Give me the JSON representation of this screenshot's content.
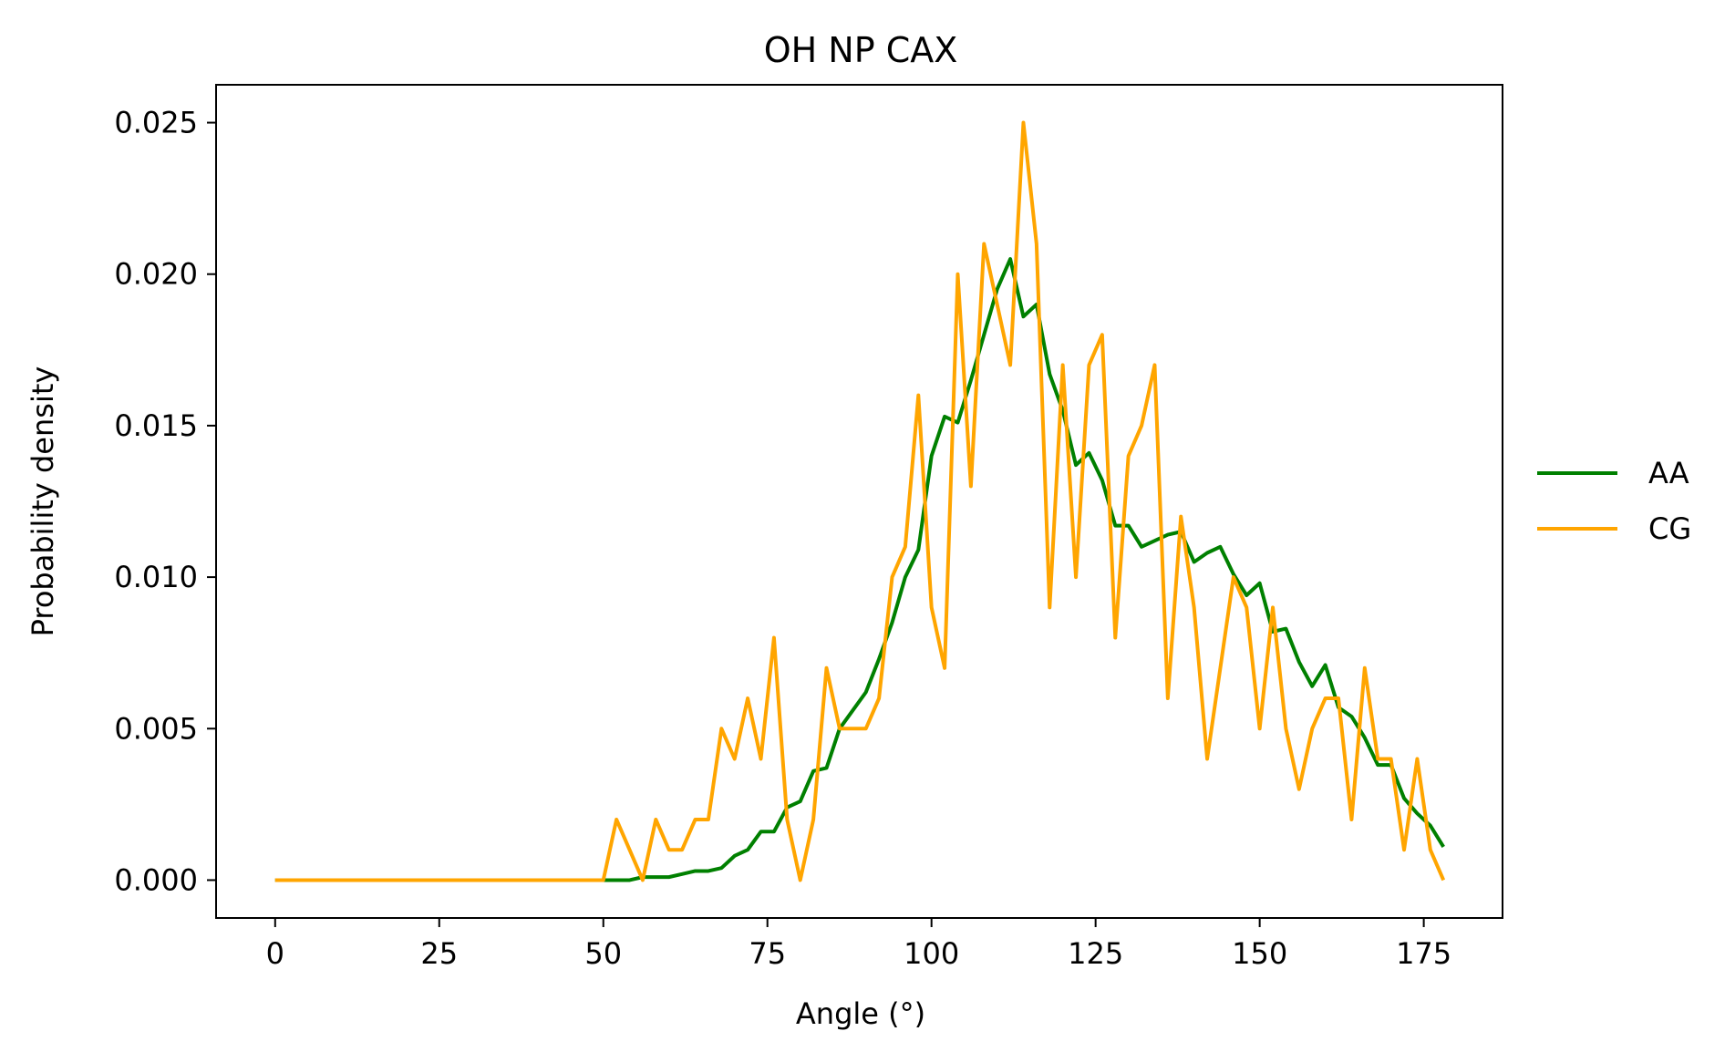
{
  "chart_data": {
    "type": "line",
    "title": "OH NP CAX",
    "xlabel": "Angle (°)",
    "ylabel": "Probability density",
    "xlim": [
      -9,
      187
    ],
    "ylim": [
      -0.00125,
      0.02625
    ],
    "xticks": [
      0,
      25,
      50,
      75,
      100,
      125,
      150,
      175
    ],
    "xtick_labels": [
      "0",
      "25",
      "50",
      "75",
      "100",
      "125",
      "150",
      "175"
    ],
    "yticks": [
      0.0,
      0.005,
      0.01,
      0.015,
      0.02,
      0.025
    ],
    "ytick_labels": [
      "0.000",
      "0.005",
      "0.010",
      "0.015",
      "0.020",
      "0.025"
    ],
    "grid": false,
    "legend_position": "center-right, outside plot",
    "x": [
      0,
      2,
      4,
      6,
      8,
      10,
      12,
      14,
      16,
      18,
      20,
      22,
      24,
      26,
      28,
      30,
      32,
      34,
      36,
      38,
      40,
      42,
      44,
      46,
      48,
      50,
      52,
      54,
      56,
      58,
      60,
      62,
      64,
      66,
      68,
      70,
      72,
      74,
      76,
      78,
      80,
      82,
      84,
      86,
      88,
      90,
      92,
      94,
      96,
      98,
      100,
      102,
      104,
      106,
      108,
      110,
      112,
      114,
      116,
      118,
      120,
      122,
      124,
      126,
      128,
      130,
      132,
      134,
      136,
      138,
      140,
      142,
      144,
      146,
      148,
      150,
      152,
      154,
      156,
      158,
      160,
      162,
      164,
      166,
      168,
      170,
      172,
      174,
      176,
      178
    ],
    "series": [
      {
        "name": "AA",
        "color": "#008000",
        "values": [
          0,
          0,
          0,
          0,
          0,
          0,
          0,
          0,
          0,
          0,
          0,
          0,
          0,
          0,
          0,
          0,
          0,
          0,
          0,
          0,
          0,
          0,
          0,
          0,
          0,
          0,
          0,
          0,
          0.0001,
          0.0001,
          0.0001,
          0.0002,
          0.0003,
          0.0003,
          0.0004,
          0.0008,
          0.001,
          0.0016,
          0.0016,
          0.0024,
          0.0026,
          0.0036,
          0.0037,
          0.005,
          0.0056,
          0.0062,
          0.0073,
          0.0085,
          0.01,
          0.0109,
          0.014,
          0.0153,
          0.0151,
          0.0165,
          0.018,
          0.0195,
          0.0205,
          0.0186,
          0.019,
          0.0167,
          0.0155,
          0.0137,
          0.0141,
          0.0132,
          0.0117,
          0.0117,
          0.011,
          0.0112,
          0.0114,
          0.0115,
          0.0105,
          0.0108,
          0.011,
          0.0101,
          0.0094,
          0.0098,
          0.0082,
          0.0083,
          0.0072,
          0.0064,
          0.0071,
          0.0057,
          0.0054,
          0.0047,
          0.0038,
          0.0038,
          0.0027,
          0.0022,
          0.0018,
          0.0011
        ]
      },
      {
        "name": "CG",
        "color": "#ffa500",
        "values": [
          0,
          0,
          0,
          0,
          0,
          0,
          0,
          0,
          0,
          0,
          0,
          0,
          0,
          0,
          0,
          0,
          0,
          0,
          0,
          0,
          0,
          0,
          0,
          0,
          0,
          0,
          0.002,
          0.001,
          0,
          0.002,
          0.001,
          0.001,
          0.002,
          0.002,
          0.005,
          0.004,
          0.006,
          0.004,
          0.008,
          0.002,
          0,
          0.002,
          0.007,
          0.005,
          0.005,
          0.005,
          0.006,
          0.01,
          0.011,
          0.016,
          0.009,
          0.007,
          0.02,
          0.013,
          0.021,
          0.019,
          0.017,
          0.025,
          0.021,
          0.009,
          0.017,
          0.01,
          0.017,
          0.018,
          0.008,
          0.014,
          0.015,
          0.017,
          0.006,
          0.012,
          0.009,
          0.004,
          0.007,
          0.01,
          0.009,
          0.005,
          0.009,
          0.005,
          0.003,
          0.005,
          0.006,
          0.006,
          0.002,
          0.007,
          0.004,
          0.004,
          0.001,
          0.004,
          0.001,
          0
        ]
      }
    ]
  }
}
